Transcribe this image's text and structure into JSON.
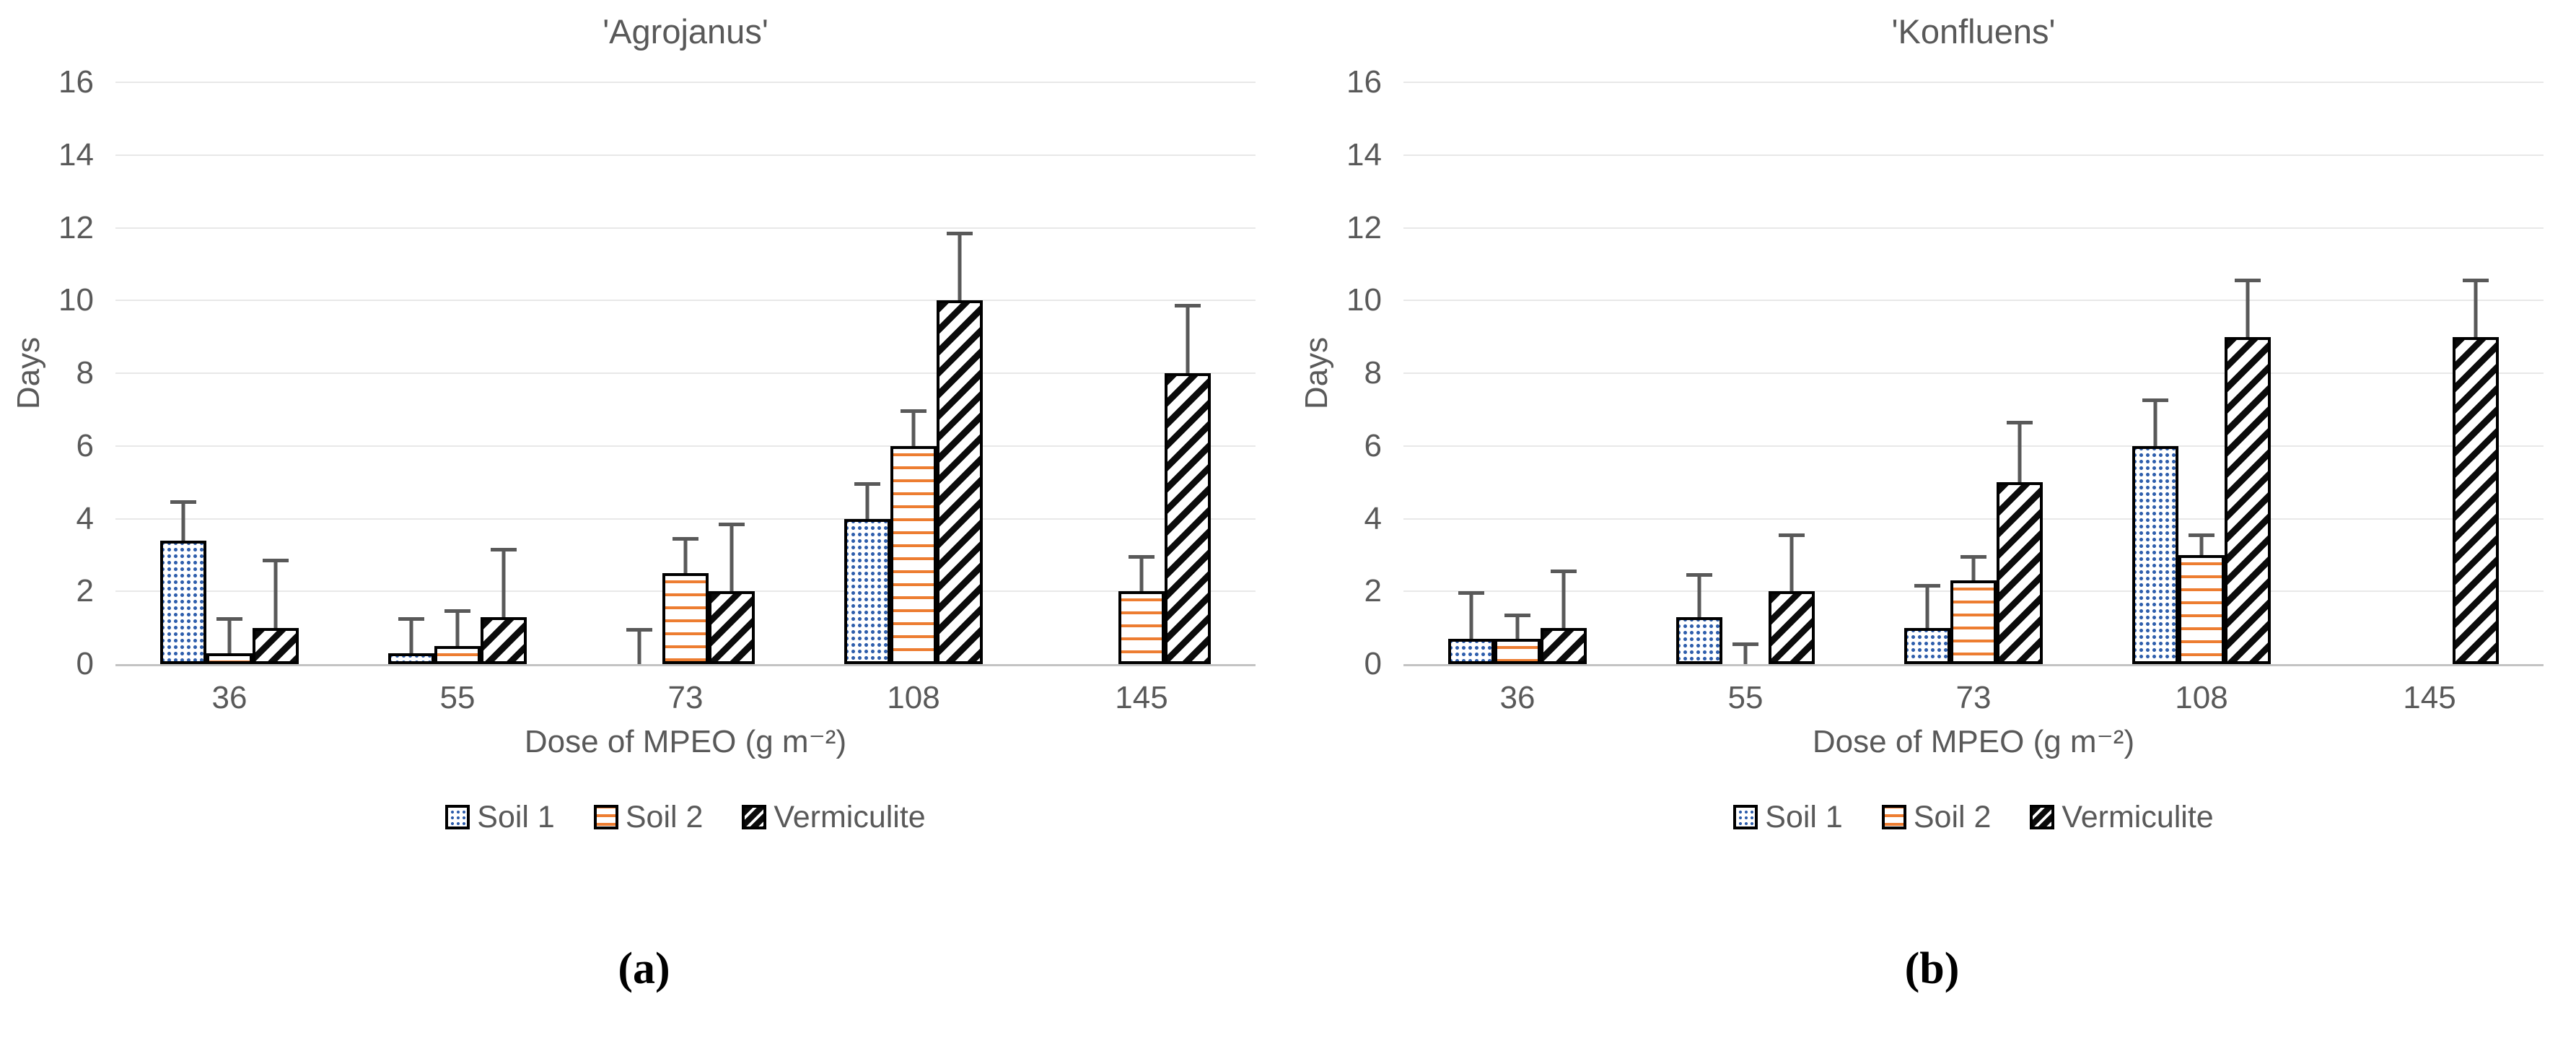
{
  "colors": {
    "text_gray": "#595959",
    "gridline": "#e8e8e8",
    "axis_line": "#c3c3c3",
    "error_bar": "#595959",
    "soil1_blue": "#2e5eac",
    "soil2_orange": "#ed7d31",
    "bar_outline": "#000000"
  },
  "chart_data": [
    {
      "type": "bar",
      "title": "'Agrojanus'",
      "panel_label": "(a)",
      "ylabel": "Days",
      "xlabel": "Dose of MPEO (g m⁻²)",
      "ylim": [
        0,
        16
      ],
      "yticks": [
        0,
        2,
        4,
        6,
        8,
        10,
        12,
        14,
        16
      ],
      "grid": "horizontal",
      "legend_position": "bottom",
      "categories": [
        "36",
        "55",
        "73",
        "108",
        "145"
      ],
      "series": [
        {
          "name": "Soil 1",
          "pattern": "blue-dots",
          "values": [
            3.4,
            0.3,
            0,
            4,
            null
          ],
          "error_top": [
            4.5,
            1.3,
            1.0,
            5.0,
            null
          ]
        },
        {
          "name": "Soil 2",
          "pattern": "orange-lines",
          "values": [
            0.3,
            0.5,
            2.5,
            6,
            2
          ],
          "error_top": [
            1.3,
            1.5,
            3.5,
            7.0,
            3.0
          ]
        },
        {
          "name": "Vermiculite",
          "pattern": "black-diagonal",
          "values": [
            1.0,
            1.3,
            2.0,
            10,
            8
          ],
          "error_top": [
            2.9,
            3.2,
            3.9,
            11.9,
            9.9
          ]
        }
      ]
    },
    {
      "type": "bar",
      "title": "'Konfluens'",
      "panel_label": "(b)",
      "ylabel": "Days",
      "xlabel": "Dose of MPEO (g m⁻²)",
      "ylim": [
        0,
        16
      ],
      "yticks": [
        0,
        2,
        4,
        6,
        8,
        10,
        12,
        14,
        16
      ],
      "grid": "horizontal",
      "legend_position": "bottom",
      "categories": [
        "36",
        "55",
        "73",
        "108",
        "145"
      ],
      "series": [
        {
          "name": "Soil 1",
          "pattern": "blue-dots",
          "values": [
            0.7,
            1.3,
            1.0,
            6,
            null
          ],
          "error_top": [
            2.0,
            2.5,
            2.2,
            7.3,
            null
          ]
        },
        {
          "name": "Soil 2",
          "pattern": "orange-lines",
          "values": [
            0.7,
            0,
            2.3,
            3,
            null
          ],
          "error_top": [
            1.4,
            0.6,
            3.0,
            3.6,
            null
          ]
        },
        {
          "name": "Vermiculite",
          "pattern": "black-diagonal",
          "values": [
            1.0,
            2.0,
            5.0,
            9,
            9
          ],
          "error_top": [
            2.6,
            3.6,
            6.7,
            10.6,
            10.6
          ]
        }
      ]
    }
  ]
}
